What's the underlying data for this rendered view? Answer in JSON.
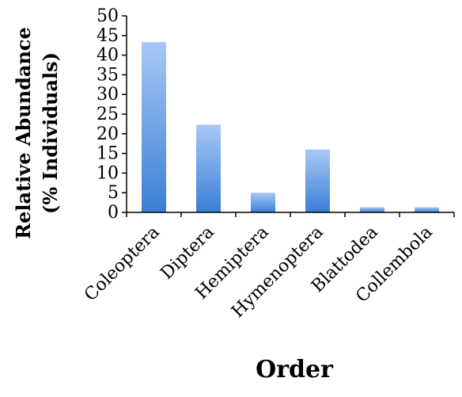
{
  "chart_data": {
    "type": "bar",
    "title": "",
    "xlabel": "Order",
    "ylabel_line1": "Relative Abundance",
    "ylabel_line2": "(% Individuals)",
    "categories": [
      "Coleoptera",
      "Diptera",
      "Hemiptera",
      "Hymenoptera",
      "Blattodea",
      "Collembola"
    ],
    "values": [
      43.3,
      22.3,
      5.0,
      16.0,
      1.3,
      1.3
    ],
    "ylim": [
      0,
      50
    ],
    "yticks": [
      "0",
      "5",
      "10",
      "15",
      "20",
      "25",
      "30",
      "35",
      "40",
      "45",
      "50"
    ],
    "grid": false,
    "legend": "none",
    "colors": {
      "bar_top": "#a8c8f5",
      "bar_bottom": "#3a7fd5",
      "axis": "#000000"
    }
  }
}
